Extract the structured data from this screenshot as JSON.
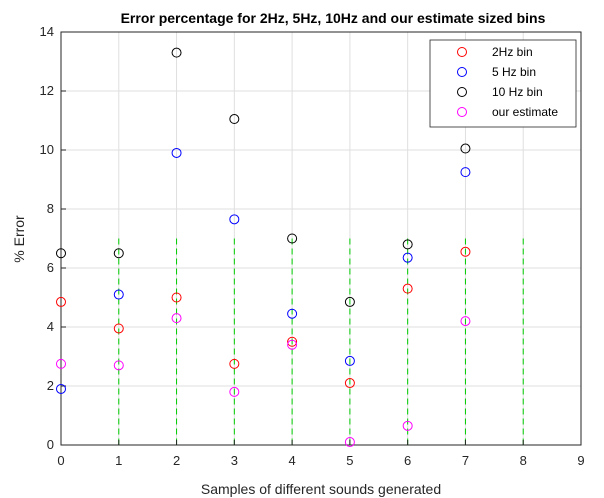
{
  "chart_data": {
    "type": "scatter",
    "title": "Error percentage for 2Hz, 5Hz, 10Hz and our estimate sized bins",
    "xlabel": "Samples of different sounds generated",
    "ylabel": "% Error",
    "xlim": [
      0,
      9
    ],
    "ylim": [
      0,
      14
    ],
    "xticks": [
      0,
      1,
      2,
      3,
      4,
      5,
      6,
      7,
      8,
      9
    ],
    "yticks": [
      0,
      2,
      4,
      6,
      8,
      10,
      12,
      14
    ],
    "grid": true,
    "legend_position": "top-right",
    "series": [
      {
        "name": "2Hz bin",
        "color": "#ff0000",
        "x": [
          0,
          1,
          2,
          3,
          4,
          5,
          6,
          7
        ],
        "y": [
          4.85,
          3.95,
          5.0,
          2.75,
          3.5,
          2.1,
          5.3,
          6.55
        ]
      },
      {
        "name": "5 Hz bin",
        "color": "#0000ff",
        "x": [
          0,
          1,
          2,
          3,
          4,
          5,
          6,
          7
        ],
        "y": [
          1.9,
          5.1,
          9.9,
          7.65,
          4.45,
          2.85,
          6.35,
          9.25
        ]
      },
      {
        "name": "10 Hz bin",
        "color": "#000000",
        "x": [
          0,
          1,
          2,
          3,
          4,
          5,
          6,
          7
        ],
        "y": [
          6.5,
          6.5,
          13.3,
          11.05,
          7.0,
          4.85,
          6.8,
          10.05
        ]
      },
      {
        "name": "our estimate",
        "color": "#ff00ff",
        "x": [
          0,
          1,
          2,
          3,
          4,
          5,
          6,
          7
        ],
        "y": [
          2.75,
          2.7,
          4.3,
          1.8,
          3.4,
          0.1,
          0.65,
          4.2
        ]
      }
    ],
    "dashed_lines": {
      "color": "#00cc00",
      "x": [
        0,
        1,
        2,
        3,
        4,
        5,
        6,
        7,
        8,
        9
      ],
      "y_top": 7
    }
  }
}
